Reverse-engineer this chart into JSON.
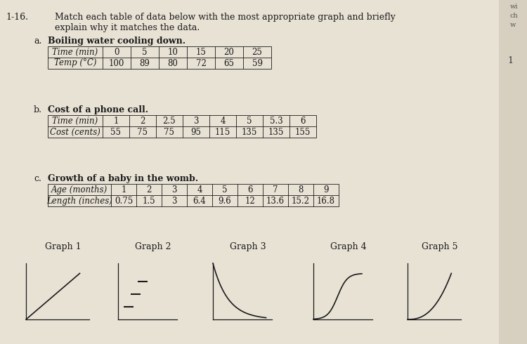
{
  "page_bg": "#e8e2d5",
  "problem_number": "1-16.",
  "main_question_line1": "Match each table of data below with the most appropriate graph and briefly",
  "main_question_line2": "explain why it matches the data.",
  "sub_a_label": "a.",
  "sub_a_title": "Boiling water cooling down.",
  "table_a_row1_header": "Time (min)",
  "table_a_row1": [
    "0",
    "5",
    "10",
    "15",
    "20",
    "25"
  ],
  "table_a_row2_header": "Temp (°C)",
  "table_a_row2": [
    "100",
    "89",
    "80",
    "72",
    "65",
    "59"
  ],
  "sub_b_label": "b.",
  "sub_b_title": "Cost of a phone call.",
  "table_b_row1_header": "Time (min)",
  "table_b_row1": [
    "1",
    "2",
    "2.5",
    "3",
    "4",
    "5",
    "5.3",
    "6"
  ],
  "table_b_row2_header": "Cost (cents)",
  "table_b_row2": [
    "55",
    "75",
    "75",
    "95",
    "115",
    "135",
    "135",
    "155"
  ],
  "sub_c_label": "c.",
  "sub_c_title": "Growth of a baby in the womb.",
  "table_c_row1_header": "Age (months)",
  "table_c_row1": [
    "1",
    "2",
    "3",
    "4",
    "5",
    "6",
    "7",
    "8",
    "9"
  ],
  "table_c_row2_header": "Length (inches)",
  "table_c_row2": [
    "0.75",
    "1.5",
    "3",
    "6.4",
    "9.6",
    "12",
    "13.6",
    "15.2",
    "16.8"
  ],
  "graph_labels": [
    "Graph 1",
    "Graph 2",
    "Graph 3",
    "Graph 4",
    "Graph 5"
  ],
  "text_color": "#1a1a1a",
  "right_edge_text": [
    "wi",
    "ch",
    "w"
  ]
}
